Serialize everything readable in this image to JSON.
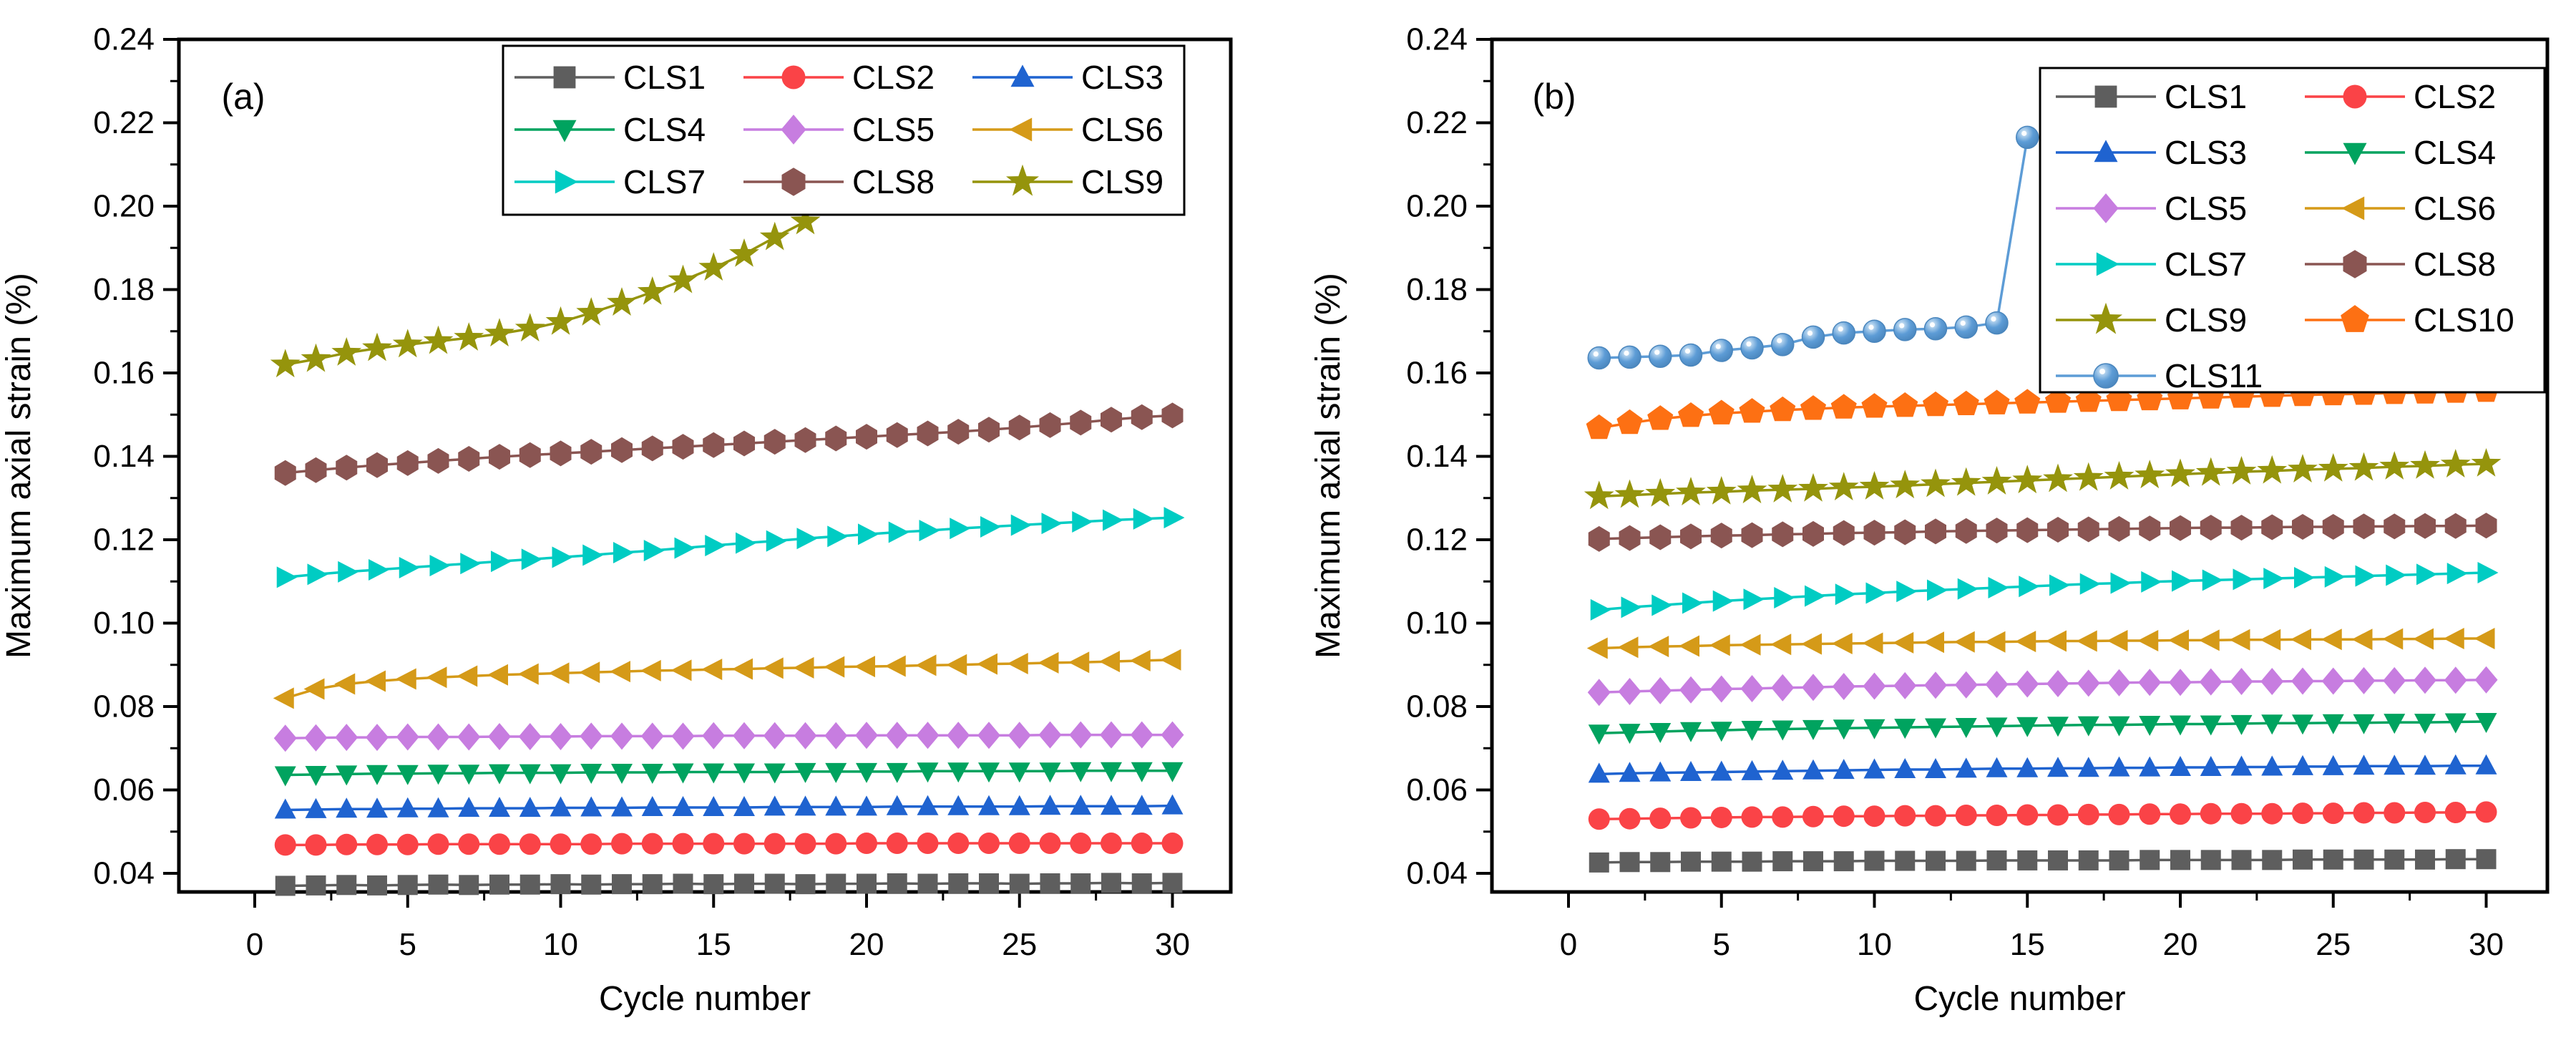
{
  "figure": {
    "background": "#ffffff",
    "description": "Two-panel line chart of maximum axial strain versus cycle number"
  },
  "chart_data": [
    {
      "type": "line",
      "panel_label": "(a)",
      "xlabel": "Cycle number",
      "ylabel": "Maximum axial strain (%)",
      "x_start": 1,
      "x_step": 1,
      "x_ticks": [
        0,
        5,
        10,
        15,
        20,
        25,
        30
      ],
      "x_minor_step": 2.5,
      "y_ticks": [
        0.04,
        0.06,
        0.08,
        0.1,
        0.12,
        0.14,
        0.16,
        0.18,
        0.2,
        0.22,
        0.24
      ],
      "y_minor_step": 0.01,
      "xlim": [
        -2.5,
        31.9
      ],
      "ylim": [
        0.0355,
        0.24
      ],
      "grid": false,
      "legend": {
        "position": "top-inside",
        "columns": 3
      },
      "series": [
        {
          "name": "CLS1",
          "marker": "square",
          "color": "#5e5e5e",
          "values": [
            0.037,
            0.0371,
            0.0372,
            0.0371,
            0.0372,
            0.0373,
            0.0372,
            0.0373,
            0.0373,
            0.0374,
            0.0373,
            0.0374,
            0.0374,
            0.0375,
            0.0374,
            0.0375,
            0.0375,
            0.0374,
            0.0375,
            0.0375,
            0.0376,
            0.0375,
            0.0376,
            0.0376,
            0.0375,
            0.0376,
            0.0376,
            0.0377,
            0.0376,
            0.0377
          ]
        },
        {
          "name": "CLS2",
          "marker": "circle",
          "color": "#fa4347",
          "values": [
            0.0468,
            0.0468,
            0.0469,
            0.0469,
            0.0469,
            0.047,
            0.047,
            0.047,
            0.047,
            0.047,
            0.047,
            0.0471,
            0.0471,
            0.0471,
            0.0471,
            0.0471,
            0.0471,
            0.0471,
            0.0471,
            0.0472,
            0.0472,
            0.0472,
            0.0472,
            0.0472,
            0.0472,
            0.0472,
            0.0472,
            0.0472,
            0.0472,
            0.0472
          ]
        },
        {
          "name": "CLS3",
          "marker": "triangle-up",
          "color": "#1f63d0",
          "values": [
            0.0552,
            0.0553,
            0.0554,
            0.0554,
            0.0555,
            0.0555,
            0.0556,
            0.0556,
            0.0556,
            0.0557,
            0.0557,
            0.0557,
            0.0558,
            0.0558,
            0.0558,
            0.0558,
            0.0559,
            0.0559,
            0.0559,
            0.0559,
            0.056,
            0.056,
            0.056,
            0.056,
            0.056,
            0.0561,
            0.0561,
            0.0561,
            0.0561,
            0.0562
          ]
        },
        {
          "name": "CLS4",
          "marker": "triangle-down",
          "color": "#00a35f",
          "values": [
            0.0636,
            0.0637,
            0.0638,
            0.0639,
            0.0639,
            0.064,
            0.064,
            0.0641,
            0.0641,
            0.0641,
            0.0642,
            0.0642,
            0.0642,
            0.0643,
            0.0643,
            0.0643,
            0.0643,
            0.0644,
            0.0644,
            0.0644,
            0.0644,
            0.0645,
            0.0645,
            0.0645,
            0.0645,
            0.0645,
            0.0646,
            0.0646,
            0.0646,
            0.0646
          ]
        },
        {
          "name": "CLS5",
          "marker": "diamond",
          "color": "#c77de0",
          "values": [
            0.0724,
            0.0725,
            0.0726,
            0.0726,
            0.0727,
            0.0727,
            0.0727,
            0.0728,
            0.0728,
            0.0728,
            0.0729,
            0.0729,
            0.0729,
            0.0729,
            0.073,
            0.073,
            0.073,
            0.073,
            0.073,
            0.0731,
            0.0731,
            0.0731,
            0.0731,
            0.0731,
            0.0731,
            0.0732,
            0.0732,
            0.0732,
            0.0732,
            0.0732
          ]
        },
        {
          "name": "CLS6",
          "marker": "triangle-left",
          "color": "#d59a18",
          "values": [
            0.082,
            0.0842,
            0.0854,
            0.0861,
            0.0866,
            0.087,
            0.0873,
            0.0876,
            0.0878,
            0.088,
            0.0882,
            0.0884,
            0.0886,
            0.0887,
            0.0889,
            0.089,
            0.0892,
            0.0893,
            0.0895,
            0.0896,
            0.0897,
            0.0899,
            0.09,
            0.0902,
            0.0903,
            0.0905,
            0.0906,
            0.0908,
            0.091,
            0.0912
          ]
        },
        {
          "name": "CLS7",
          "marker": "triangle-right",
          "color": "#00ccc3",
          "values": [
            0.111,
            0.1117,
            0.1123,
            0.1128,
            0.1133,
            0.1138,
            0.1143,
            0.1148,
            0.1153,
            0.1158,
            0.1163,
            0.1169,
            0.1174,
            0.118,
            0.1186,
            0.1192,
            0.1197,
            0.1203,
            0.1208,
            0.1213,
            0.1218,
            0.1222,
            0.1227,
            0.1231,
            0.1235,
            0.1239,
            0.1243,
            0.1247,
            0.125,
            0.1253
          ]
        },
        {
          "name": "CLS8",
          "marker": "hexagon",
          "color": "#8a5552",
          "values": [
            0.136,
            0.1367,
            0.1373,
            0.1379,
            0.1384,
            0.1389,
            0.1394,
            0.1399,
            0.1403,
            0.1407,
            0.1411,
            0.1415,
            0.1419,
            0.1423,
            0.1427,
            0.1431,
            0.1435,
            0.1439,
            0.1443,
            0.1447,
            0.1451,
            0.1455,
            0.1459,
            0.1464,
            0.1469,
            0.1475,
            0.1481,
            0.1488,
            0.1494,
            0.1498
          ]
        },
        {
          "name": "CLS9",
          "marker": "star",
          "color": "#95940c",
          "values": [
            0.162,
            0.1633,
            0.1648,
            0.1659,
            0.1668,
            0.1676,
            0.1684,
            0.1694,
            0.1706,
            0.1722,
            0.1744,
            0.1768,
            0.1794,
            0.1822,
            0.1852,
            0.1885,
            0.1925,
            0.1963
          ]
        }
      ]
    },
    {
      "type": "line",
      "panel_label": "(b)",
      "xlabel": "Cycle number",
      "ylabel": "Maximum axial strain (%)",
      "x_start": 1,
      "x_step": 1,
      "x_ticks": [
        0,
        5,
        10,
        15,
        20,
        25,
        30
      ],
      "x_minor_step": 2.5,
      "y_ticks": [
        0.04,
        0.06,
        0.08,
        0.1,
        0.12,
        0.14,
        0.16,
        0.18,
        0.2,
        0.22,
        0.24
      ],
      "y_minor_step": 0.01,
      "xlim": [
        -2.5,
        32.0
      ],
      "ylim": [
        0.0355,
        0.24
      ],
      "grid": false,
      "legend": {
        "position": "top-right-inside",
        "columns": 2
      },
      "series": [
        {
          "name": "CLS1",
          "marker": "square",
          "color": "#5e5e5e",
          "values": [
            0.0426,
            0.0427,
            0.0427,
            0.0428,
            0.0428,
            0.0428,
            0.0429,
            0.0429,
            0.0429,
            0.043,
            0.043,
            0.043,
            0.043,
            0.0431,
            0.0431,
            0.0431,
            0.0431,
            0.0431,
            0.0432,
            0.0432,
            0.0432,
            0.0432,
            0.0432,
            0.0433,
            0.0433,
            0.0433,
            0.0433,
            0.0433,
            0.0434,
            0.0434
          ]
        },
        {
          "name": "CLS2",
          "marker": "circle",
          "color": "#fa4347",
          "values": [
            0.053,
            0.0531,
            0.0532,
            0.0533,
            0.0534,
            0.0535,
            0.0535,
            0.0536,
            0.0537,
            0.0537,
            0.0538,
            0.0538,
            0.0539,
            0.0539,
            0.054,
            0.054,
            0.0541,
            0.0541,
            0.0542,
            0.0542,
            0.0543,
            0.0543,
            0.0543,
            0.0544,
            0.0544,
            0.0545,
            0.0545,
            0.0546,
            0.0546,
            0.0547
          ]
        },
        {
          "name": "CLS3",
          "marker": "triangle-up",
          "color": "#1f63d0",
          "values": [
            0.0638,
            0.064,
            0.0641,
            0.0642,
            0.0643,
            0.0644,
            0.0645,
            0.0646,
            0.0647,
            0.0648,
            0.0649,
            0.0649,
            0.065,
            0.0651,
            0.0651,
            0.0652,
            0.0652,
            0.0653,
            0.0653,
            0.0654,
            0.0654,
            0.0655,
            0.0655,
            0.0656,
            0.0656,
            0.0657,
            0.0657,
            0.0657,
            0.0658,
            0.0658
          ]
        },
        {
          "name": "CLS4",
          "marker": "triangle-down",
          "color": "#00a35f",
          "values": [
            0.0736,
            0.0738,
            0.074,
            0.0742,
            0.0743,
            0.0745,
            0.0746,
            0.0747,
            0.0748,
            0.0749,
            0.075,
            0.0751,
            0.0752,
            0.0753,
            0.0754,
            0.0755,
            0.0756,
            0.0756,
            0.0757,
            0.0758,
            0.0758,
            0.0759,
            0.076,
            0.076,
            0.0761,
            0.0761,
            0.0762,
            0.0762,
            0.0763,
            0.0764
          ]
        },
        {
          "name": "CLS5",
          "marker": "diamond",
          "color": "#c77de0",
          "values": [
            0.0834,
            0.0836,
            0.0838,
            0.084,
            0.0842,
            0.0843,
            0.0845,
            0.0846,
            0.0848,
            0.0849,
            0.085,
            0.0851,
            0.0852,
            0.0853,
            0.0854,
            0.0855,
            0.0856,
            0.0857,
            0.0858,
            0.0858,
            0.0859,
            0.086,
            0.086,
            0.0861,
            0.0861,
            0.0862,
            0.0862,
            0.0863,
            0.0863,
            0.0864
          ]
        },
        {
          "name": "CLS6",
          "marker": "triangle-left",
          "color": "#d59a18",
          "values": [
            0.094,
            0.0942,
            0.0944,
            0.0945,
            0.0947,
            0.0948,
            0.0949,
            0.095,
            0.0951,
            0.0952,
            0.0953,
            0.0954,
            0.0955,
            0.0955,
            0.0956,
            0.0957,
            0.0957,
            0.0958,
            0.0958,
            0.0959,
            0.0959,
            0.096,
            0.096,
            0.0961,
            0.0961,
            0.0961,
            0.0962,
            0.0962,
            0.0963,
            0.0963
          ]
        },
        {
          "name": "CLS7",
          "marker": "triangle-right",
          "color": "#00ccc3",
          "values": [
            0.1032,
            0.1038,
            0.1043,
            0.1048,
            0.1053,
            0.1057,
            0.1061,
            0.1065,
            0.1069,
            0.1072,
            0.1076,
            0.1079,
            0.1082,
            0.1085,
            0.1088,
            0.1091,
            0.1094,
            0.1096,
            0.1099,
            0.1101,
            0.1103,
            0.1105,
            0.1107,
            0.1109,
            0.1111,
            0.1113,
            0.1115,
            0.1117,
            0.1119,
            0.1121
          ]
        },
        {
          "name": "CLS8",
          "marker": "hexagon",
          "color": "#8a5552",
          "values": [
            0.1202,
            0.1204,
            0.1206,
            0.1208,
            0.121,
            0.1211,
            0.1213,
            0.1214,
            0.1216,
            0.1217,
            0.1218,
            0.122,
            0.1221,
            0.1222,
            0.1223,
            0.1224,
            0.1225,
            0.1226,
            0.1227,
            0.1228,
            0.1229,
            0.1229,
            0.123,
            0.1231,
            0.1231,
            0.1232,
            0.1232,
            0.1233,
            0.1233,
            0.1234
          ]
        },
        {
          "name": "CLS9",
          "marker": "star",
          "color": "#95940c",
          "values": [
            0.1304,
            0.1307,
            0.131,
            0.1313,
            0.1315,
            0.1318,
            0.132,
            0.1322,
            0.1325,
            0.1327,
            0.133,
            0.1333,
            0.1336,
            0.1339,
            0.1342,
            0.1345,
            0.1348,
            0.1351,
            0.1354,
            0.1357,
            0.136,
            0.1363,
            0.1365,
            0.1368,
            0.137,
            0.1372,
            0.1375,
            0.1377,
            0.138,
            0.1382
          ]
        },
        {
          "name": "CLS10",
          "marker": "pentagon",
          "color": "#fd7013",
          "values": [
            0.1468,
            0.148,
            0.149,
            0.1497,
            0.1503,
            0.1507,
            0.1511,
            0.1514,
            0.1517,
            0.1519,
            0.1521,
            0.1523,
            0.1525,
            0.1527,
            0.1529,
            0.1531,
            0.1533,
            0.1535,
            0.1537,
            0.1539,
            0.1541,
            0.1543,
            0.1545,
            0.1547,
            0.1549,
            0.155,
            0.1552,
            0.1553,
            0.1555,
            0.1557
          ]
        },
        {
          "name": "CLS11",
          "marker": "sphere",
          "color": "#5d9cd6",
          "values": [
            0.1636,
            0.1638,
            0.164,
            0.1643,
            0.1654,
            0.166,
            0.1668,
            0.1686,
            0.1696,
            0.17,
            0.1704,
            0.1706,
            0.171,
            0.172,
            0.2165
          ]
        }
      ]
    }
  ]
}
